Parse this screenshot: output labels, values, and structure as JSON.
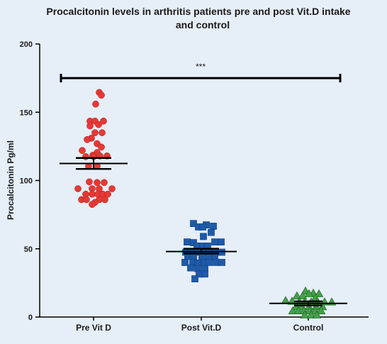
{
  "chart_data": {
    "type": "scatter",
    "title": "Procalcitonin levels in  arthritis patients pre and post Vit.D intake and control",
    "title_lines": [
      "Procalcitonin levels in  arthritis patients pre and post Vit.D intake",
      "and control"
    ],
    "ylabel": "Procalcitonin Pg/ml",
    "xlabel": "",
    "ylim": [
      0,
      200
    ],
    "yticks": [
      "0",
      "50",
      "100",
      "150",
      "200"
    ],
    "categories": [
      "Pre Vit D",
      "Post Vit.D",
      "Control"
    ],
    "grid": false,
    "significance": {
      "label": "***",
      "y": 175,
      "from": "Pre Vit D",
      "to": "Control"
    },
    "series": [
      {
        "category": "Pre Vit D",
        "marker": "circle",
        "color": "#e53935",
        "mean": 112.5,
        "sem_low": 108.5,
        "sem_high": 116.5,
        "points": [
          {
            "dx": 0.4,
            "y": 164.5
          },
          {
            "dx": 0.55,
            "y": 162.5
          },
          {
            "dx": 0.15,
            "y": 156.0
          },
          {
            "dx": -0.25,
            "y": 143.5
          },
          {
            "dx": 0.1,
            "y": 143.5
          },
          {
            "dx": 0.7,
            "y": 143.5
          },
          {
            "dx": -0.25,
            "y": 140.0
          },
          {
            "dx": 0.35,
            "y": 141.0
          },
          {
            "dx": 0.6,
            "y": 135.0
          },
          {
            "dx": 0.1,
            "y": 135.0
          },
          {
            "dx": -0.15,
            "y": 131.0
          },
          {
            "dx": -0.45,
            "y": 130.0
          },
          {
            "dx": 0.25,
            "y": 127.0
          },
          {
            "dx": 0.55,
            "y": 124.5
          },
          {
            "dx": -0.8,
            "y": 122.0
          },
          {
            "dx": 0.25,
            "y": 120.5
          },
          {
            "dx": -0.05,
            "y": 118.5
          },
          {
            "dx": 0.45,
            "y": 118.0
          },
          {
            "dx": 0.95,
            "y": 118.0
          },
          {
            "dx": -0.55,
            "y": 117.5
          },
          {
            "dx": 0.0,
            "y": 117.5
          },
          {
            "dx": -0.35,
            "y": 110.5
          },
          {
            "dx": 0.25,
            "y": 110.5
          },
          {
            "dx": -0.3,
            "y": 99.0
          },
          {
            "dx": 0.25,
            "y": 98.5
          },
          {
            "dx": 0.75,
            "y": 98.5
          },
          {
            "dx": -1.1,
            "y": 94.0
          },
          {
            "dx": -0.1,
            "y": 94.0
          },
          {
            "dx": 0.4,
            "y": 94.0
          },
          {
            "dx": 1.3,
            "y": 94.0
          },
          {
            "dx": -0.55,
            "y": 90.0
          },
          {
            "dx": -0.1,
            "y": 90.0
          },
          {
            "dx": 0.3,
            "y": 90.0
          },
          {
            "dx": 0.65,
            "y": 90.0
          },
          {
            "dx": 1.0,
            "y": 90.0
          },
          {
            "dx": -0.85,
            "y": 86.0
          },
          {
            "dx": -0.5,
            "y": 86.0
          },
          {
            "dx": 0.4,
            "y": 86.0
          },
          {
            "dx": 0.8,
            "y": 86.0
          },
          {
            "dx": 0.1,
            "y": 84.0
          },
          {
            "dx": -0.1,
            "y": 82.5
          }
        ]
      },
      {
        "category": "Post Vit.D",
        "marker": "square",
        "color": "#1e5aa8",
        "mean": 48.0,
        "sem_low": 46.5,
        "sem_high": 50.0,
        "points": [
          {
            "dx": -0.55,
            "y": 68.5
          },
          {
            "dx": 0.35,
            "y": 67.5
          },
          {
            "dx": 0.85,
            "y": 66.5
          },
          {
            "dx": -0.2,
            "y": 66.0
          },
          {
            "dx": 0.1,
            "y": 66.0
          },
          {
            "dx": 0.7,
            "y": 62.0
          },
          {
            "dx": 0.15,
            "y": 59.0
          },
          {
            "dx": -1.0,
            "y": 55.0
          },
          {
            "dx": -0.55,
            "y": 54.5
          },
          {
            "dx": 0.95,
            "y": 55.0
          },
          {
            "dx": 1.4,
            "y": 55.0
          },
          {
            "dx": -0.3,
            "y": 52.0
          },
          {
            "dx": 0.1,
            "y": 52.0
          },
          {
            "dx": 0.45,
            "y": 52.0
          },
          {
            "dx": -1.1,
            "y": 47.5
          },
          {
            "dx": -0.75,
            "y": 47.5
          },
          {
            "dx": -0.3,
            "y": 47.5
          },
          {
            "dx": 0.2,
            "y": 47.5
          },
          {
            "dx": 0.55,
            "y": 47.5
          },
          {
            "dx": 1.0,
            "y": 47.5
          },
          {
            "dx": 1.45,
            "y": 47.5
          },
          {
            "dx": -0.95,
            "y": 44.5
          },
          {
            "dx": -0.55,
            "y": 44.0
          },
          {
            "dx": 0.05,
            "y": 44.0
          },
          {
            "dx": 0.55,
            "y": 44.0
          },
          {
            "dx": 0.95,
            "y": 44.0
          },
          {
            "dx": -1.15,
            "y": 40.0
          },
          {
            "dx": -0.6,
            "y": 40.0
          },
          {
            "dx": -0.25,
            "y": 39.5
          },
          {
            "dx": 0.2,
            "y": 40.0
          },
          {
            "dx": 0.55,
            "y": 40.0
          },
          {
            "dx": 1.05,
            "y": 40.0
          },
          {
            "dx": 1.45,
            "y": 40.0
          },
          {
            "dx": -0.75,
            "y": 36.0
          },
          {
            "dx": -0.25,
            "y": 35.5
          },
          {
            "dx": 0.25,
            "y": 35.5
          },
          {
            "dx": -0.15,
            "y": 31.5
          },
          {
            "dx": 0.25,
            "y": 31.5
          },
          {
            "dx": -0.45,
            "y": 28.0
          }
        ]
      },
      {
        "category": "Control",
        "marker": "triangle",
        "color": "#43a047",
        "mean": 10.0,
        "sem_low": 8.5,
        "sem_high": 11.5,
        "points": [
          {
            "dx": -0.2,
            "y": 19.0
          },
          {
            "dx": 0.35,
            "y": 17.5
          },
          {
            "dx": 0.75,
            "y": 17.0
          },
          {
            "dx": 0.05,
            "y": 17.0
          },
          {
            "dx": -0.8,
            "y": 15.5
          },
          {
            "dx": -0.4,
            "y": 15.5
          },
          {
            "dx": 0.5,
            "y": 14.0
          },
          {
            "dx": -1.6,
            "y": 12.0
          },
          {
            "dx": -1.15,
            "y": 11.5
          },
          {
            "dx": -0.65,
            "y": 11.0
          },
          {
            "dx": -0.25,
            "y": 11.0
          },
          {
            "dx": 0.2,
            "y": 11.0
          },
          {
            "dx": 0.65,
            "y": 11.0
          },
          {
            "dx": 1.15,
            "y": 11.0
          },
          {
            "dx": 1.65,
            "y": 11.0
          },
          {
            "dx": -0.85,
            "y": 7.5
          },
          {
            "dx": -0.45,
            "y": 7.5
          },
          {
            "dx": 0.05,
            "y": 7.5
          },
          {
            "dx": 0.55,
            "y": 7.5
          },
          {
            "dx": 1.0,
            "y": 7.5
          },
          {
            "dx": -1.1,
            "y": 4.5
          },
          {
            "dx": -0.7,
            "y": 4.5
          },
          {
            "dx": -0.3,
            "y": 4.5
          },
          {
            "dx": 0.1,
            "y": 4.5
          },
          {
            "dx": 0.5,
            "y": 4.5
          },
          {
            "dx": 0.9,
            "y": 4.5
          },
          {
            "dx": -0.25,
            "y": 1.5
          },
          {
            "dx": 0.2,
            "y": 1.5
          },
          {
            "dx": 0.6,
            "y": 1.5
          }
        ]
      }
    ]
  }
}
